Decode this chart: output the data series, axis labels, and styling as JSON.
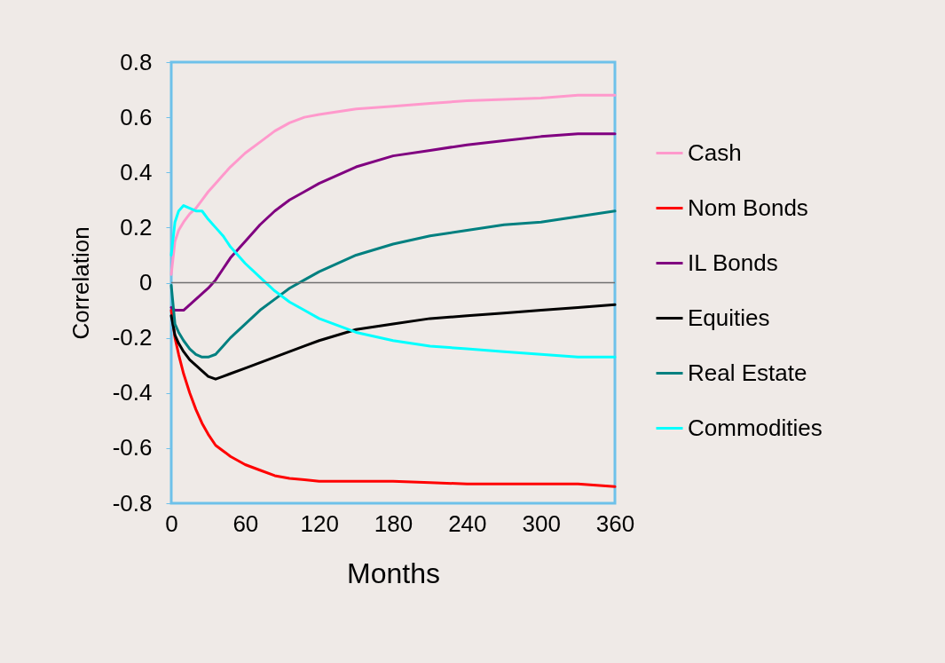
{
  "chart_data": {
    "type": "line",
    "xlabel": "Months",
    "ylabel": "Correlation",
    "x": [
      0,
      3,
      6,
      10,
      15,
      20,
      25,
      30,
      36,
      42,
      48,
      60,
      72,
      84,
      96,
      108,
      120,
      150,
      180,
      210,
      240,
      270,
      300,
      330,
      360
    ],
    "xlim": [
      0,
      360
    ],
    "xticks": [
      0,
      60,
      120,
      180,
      240,
      300,
      360
    ],
    "ylim": [
      -0.8,
      0.8
    ],
    "yticks": [
      -0.8,
      -0.6,
      -0.4,
      -0.2,
      0,
      0.2,
      0.4,
      0.6,
      0.8
    ],
    "grid": false,
    "legend": "right",
    "marker": "none",
    "line_style": "solid",
    "ref_lines": [
      {
        "axis": "y",
        "value": 0,
        "color": "#707070"
      }
    ],
    "series": [
      {
        "name": "Cash",
        "color": "#ff99cc",
        "values": [
          0.03,
          0.15,
          0.19,
          0.22,
          0.25,
          0.27,
          0.3,
          0.33,
          0.36,
          0.39,
          0.42,
          0.47,
          0.51,
          0.55,
          0.58,
          0.6,
          0.61,
          0.63,
          0.64,
          0.65,
          0.66,
          0.665,
          0.67,
          0.68,
          0.68
        ]
      },
      {
        "name": "Nom Bonds",
        "color": "#ff0000",
        "values": [
          -0.1,
          -0.2,
          -0.26,
          -0.33,
          -0.4,
          -0.46,
          -0.51,
          -0.55,
          -0.59,
          -0.61,
          -0.63,
          -0.66,
          -0.68,
          -0.7,
          -0.71,
          -0.715,
          -0.72,
          -0.72,
          -0.72,
          -0.725,
          -0.73,
          -0.73,
          -0.73,
          -0.73,
          -0.74
        ]
      },
      {
        "name": "IL Bonds",
        "color": "#800080",
        "values": [
          -0.09,
          -0.1,
          -0.1,
          -0.1,
          -0.08,
          -0.06,
          -0.04,
          -0.02,
          0.01,
          0.05,
          0.09,
          0.15,
          0.21,
          0.26,
          0.3,
          0.33,
          0.36,
          0.42,
          0.46,
          0.48,
          0.5,
          0.515,
          0.53,
          0.54,
          0.54
        ]
      },
      {
        "name": "Equities",
        "color": "#000000",
        "values": [
          -0.12,
          -0.19,
          -0.22,
          -0.25,
          -0.28,
          -0.3,
          -0.32,
          -0.34,
          -0.35,
          -0.34,
          -0.33,
          -0.31,
          -0.29,
          -0.27,
          -0.25,
          -0.23,
          -0.21,
          -0.17,
          -0.15,
          -0.13,
          -0.12,
          -0.11,
          -0.1,
          -0.09,
          -0.08
        ]
      },
      {
        "name": "Real Estate",
        "color": "#008080",
        "values": [
          -0.01,
          -0.15,
          -0.18,
          -0.21,
          -0.24,
          -0.26,
          -0.27,
          -0.27,
          -0.26,
          -0.23,
          -0.2,
          -0.15,
          -0.1,
          -0.06,
          -0.02,
          0.01,
          0.04,
          0.1,
          0.14,
          0.17,
          0.19,
          0.21,
          0.22,
          0.24,
          0.26
        ]
      },
      {
        "name": "Commodities",
        "color": "#00ffff",
        "values": [
          0.1,
          0.22,
          0.26,
          0.28,
          0.27,
          0.26,
          0.26,
          0.23,
          0.2,
          0.17,
          0.13,
          0.07,
          0.02,
          -0.03,
          -0.07,
          -0.1,
          -0.13,
          -0.18,
          -0.21,
          -0.23,
          -0.24,
          -0.25,
          -0.26,
          -0.27,
          -0.27
        ]
      }
    ]
  }
}
